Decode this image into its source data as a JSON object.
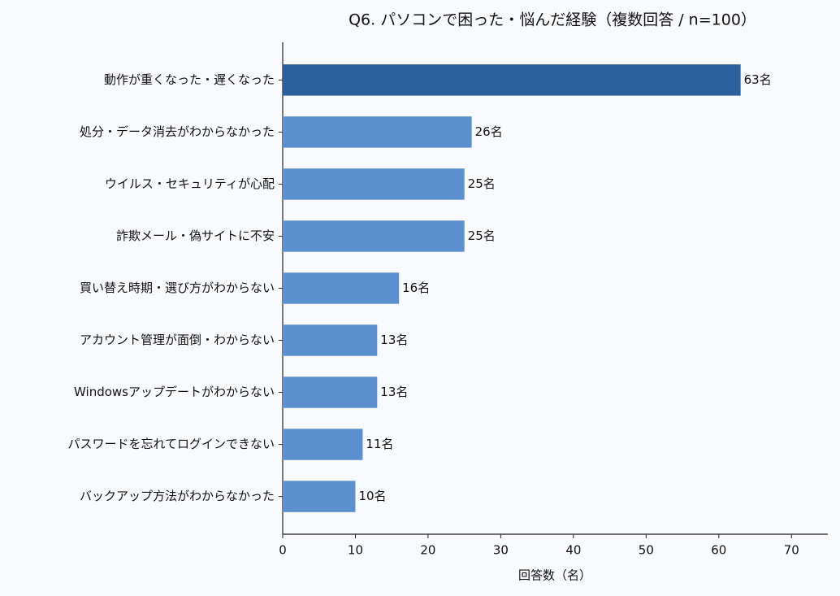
{
  "chart_data": {
    "type": "bar",
    "orientation": "horizontal",
    "title": "Q6. パソコンで困った・悩んだ経験（複数回答 / n=100）",
    "x_label": "回答数（名）",
    "categories": [
      "動作が重くなった・遅くなった",
      "処分・データ消去がわからなかった",
      "ウイルス・セキュリティが心配",
      "詐欺メール・偽サイトに不安",
      "買い替え時期・選び方がわからない",
      "アカウント管理が面倒・わからない",
      "Windowsアップデートがわからない",
      "パスワードを忘れてログインできない",
      "バックアップ方法がわからなかった"
    ],
    "values": [
      63,
      26,
      25,
      25,
      16,
      13,
      13,
      11,
      10
    ],
    "value_labels": [
      "63名",
      "26名",
      "25名",
      "25名",
      "16名",
      "13名",
      "13名",
      "11名",
      "10名"
    ],
    "colors": [
      "#2b5f9e",
      "#5b8fd0",
      "#5b8fd0",
      "#5b8fd0",
      "#5b8fd0",
      "#5b8fd0",
      "#5b8fd0",
      "#5b8fd0",
      "#5b8fd0"
    ],
    "xlim": [
      0,
      75
    ],
    "xticks": [
      0,
      10,
      20,
      30,
      40,
      50,
      60,
      70
    ]
  }
}
